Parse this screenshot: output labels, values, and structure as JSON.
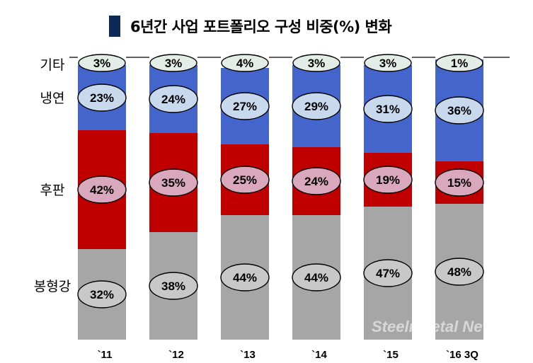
{
  "title": "6년간 사업 포트폴리오 구성 비중(%) 변화",
  "watermark": "SteelnMetal News",
  "chart_data": {
    "type": "bar",
    "stacked": true,
    "categories": [
      "`11",
      "`12",
      "`13",
      "`14",
      "`15",
      "`16 3Q"
    ],
    "series": [
      {
        "name": "봉형강",
        "color": "#a6a6a6",
        "values": [
          32,
          38,
          44,
          44,
          47,
          48
        ]
      },
      {
        "name": "후판",
        "color": "#c00000",
        "values": [
          42,
          35,
          25,
          24,
          19,
          15
        ]
      },
      {
        "name": "냉연",
        "color": "#4466cc",
        "values": [
          23,
          24,
          27,
          29,
          31,
          36
        ]
      },
      {
        "name": "기타",
        "color": "#ffffff",
        "values": [
          3,
          3,
          4,
          3,
          3,
          1
        ]
      }
    ],
    "value_suffix": "%",
    "ylim": [
      0,
      100
    ],
    "grid": false,
    "legend": "left"
  }
}
